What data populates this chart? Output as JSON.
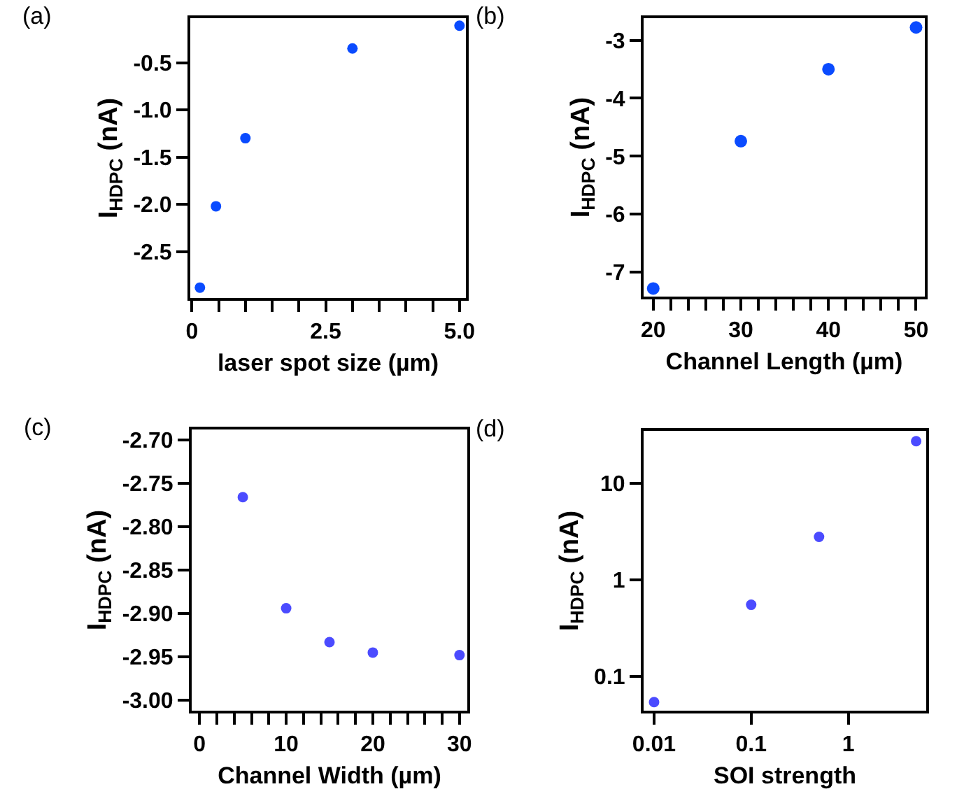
{
  "chart_data": [
    {
      "type": "scatter",
      "title": "(a)",
      "xlabel": "laser spot size (µm)",
      "ylabel": "I$_{HDPC}$ (nA)",
      "marker": "circle",
      "color": "#0a4bff",
      "x": [
        0.15,
        0.45,
        1.0,
        3.0,
        5.0
      ],
      "values": [
        -2.88,
        -2.02,
        -1.3,
        -0.35,
        -0.11
      ],
      "xlim": [
        -0.03,
        5.12
      ],
      "xticks": [
        0,
        {
          "value": 0.5,
          "label": null
        },
        {
          "value": 1.0,
          "label": null
        },
        {
          "value": 1.5,
          "label": null
        },
        {
          "value": 2.0,
          "label": null
        },
        2.5,
        {
          "value": 3.0,
          "label": null
        },
        {
          "value": 3.5,
          "label": null
        },
        {
          "value": 4.0,
          "label": null
        },
        {
          "value": 4.5,
          "label": null
        },
        {
          "value": 5,
          "label": "5.0"
        }
      ],
      "ylim": [
        -2.99,
        -0.03
      ],
      "yticks": [
        -2.5,
        {
          "value": -2,
          "label": "-2.0"
        },
        -1.5,
        {
          "value": -1,
          "label": "-1.0"
        },
        -0.5
      ]
    },
    {
      "type": "scatter",
      "title": "(b)",
      "xlabel": "Channel Length (µm)",
      "ylabel": "I$_{HDPC}$ (nA)",
      "marker": "circle",
      "color": "#0a4bff",
      "x": [
        20,
        30,
        40,
        50
      ],
      "values": [
        -7.28,
        -4.74,
        -3.5,
        -2.78
      ],
      "xlim": [
        18.9,
        51.0
      ],
      "xticks": [
        20,
        {
          "value": 22,
          "label": null
        },
        {
          "value": 24,
          "label": null
        },
        {
          "value": 26,
          "label": null
        },
        {
          "value": 28,
          "label": null
        },
        30,
        {
          "value": 32,
          "label": null
        },
        {
          "value": 34,
          "label": null
        },
        {
          "value": 36,
          "label": null
        },
        {
          "value": 38,
          "label": null
        },
        40,
        {
          "value": 42,
          "label": null
        },
        {
          "value": 44,
          "label": null
        },
        {
          "value": 46,
          "label": null
        },
        {
          "value": 48,
          "label": null
        },
        50
      ],
      "ylim": [
        -7.42,
        -2.62
      ],
      "yticks": [
        -7,
        -6,
        -5,
        -4,
        -3
      ]
    },
    {
      "type": "scatter",
      "title": "(c)",
      "xlabel": "Channel Width (µm)",
      "ylabel": "I$_{HDPC}$ (nA)",
      "marker": "circle",
      "color": "#4b4bff",
      "x": [
        5,
        10,
        15,
        20,
        30
      ],
      "values": [
        -2.766,
        -2.894,
        -2.933,
        -2.945,
        -2.948
      ],
      "xlim": [
        -0.9,
        30.9
      ],
      "xticks": [
        0,
        {
          "value": 2,
          "label": null
        },
        {
          "value": 4,
          "label": null
        },
        {
          "value": 6,
          "label": null
        },
        {
          "value": 8,
          "label": null
        },
        10,
        {
          "value": 12,
          "label": null
        },
        {
          "value": 14,
          "label": null
        },
        {
          "value": 16,
          "label": null
        },
        {
          "value": 18,
          "label": null
        },
        20,
        {
          "value": 22,
          "label": null
        },
        {
          "value": 24,
          "label": null
        },
        {
          "value": 26,
          "label": null
        },
        {
          "value": 28,
          "label": null
        },
        30
      ],
      "ylim": [
        -3.012,
        -2.688
      ],
      "yticks": [
        {
          "value": -3.0,
          "label": "-3.00"
        },
        {
          "value": -2.95,
          "label": "-2.95"
        },
        {
          "value": -2.9,
          "label": "-2.90"
        },
        {
          "value": -2.85,
          "label": "-2.85"
        },
        {
          "value": -2.8,
          "label": "-2.80"
        },
        {
          "value": -2.75,
          "label": "-2.75"
        },
        {
          "value": -2.7,
          "label": "-2.70"
        }
      ]
    },
    {
      "type": "scatter",
      "title": "(d)",
      "xlabel": "SOI strength",
      "ylabel": "I$_{HDPC}$ (nA)",
      "marker": "circle",
      "color": "#4b4bff",
      "log": "xy",
      "x": [
        0.01,
        0.1,
        0.5,
        5.0
      ],
      "values": [
        0.054,
        0.55,
        2.78,
        27.2
      ],
      "xlim": [
        0.0078,
        6.35
      ],
      "xticks": [
        0.01,
        0.1,
        1
      ],
      "ylim": [
        0.044,
        34.8
      ],
      "yticks": [
        0.1,
        1,
        10
      ]
    }
  ]
}
